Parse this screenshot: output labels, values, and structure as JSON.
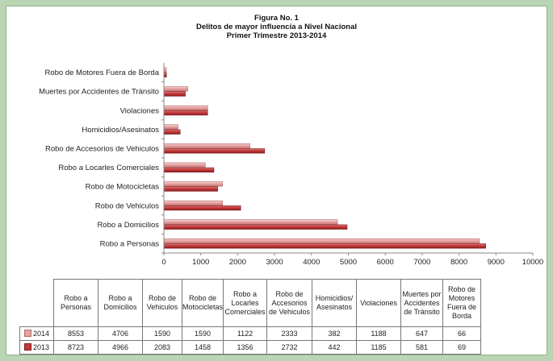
{
  "chart_data": {
    "type": "bar",
    "orientation": "horizontal",
    "title": [
      "Figura No. 1",
      "Delitos de mayor influencia a Nivel Nacional",
      "Primer Trimestre 2013-2014"
    ],
    "categories": [
      "Robo a Personas",
      "Robo a Domicilios",
      "Robo de Vehiculos",
      "Robo de Motocicletas",
      "Robo a Locarles Comerciales",
      "Robo de Accesorios de Vehiculos",
      "Homicidios/Asesinatos",
      "Violaciones",
      "Muertes por Accidentes de Trànsito",
      "Robo de Motores Fuera de Borda"
    ],
    "table_headers": [
      "Robo a Personas",
      "Robo a Domicilios",
      "Robo de Vehiculos",
      "Robo de Motocicletas",
      "Robo a Locarles Comerciales",
      "Robo de Accesorios de Vehiculos",
      "Homicidios/ Asesinatos",
      "Violaciones",
      "Muertes por Accidentes de Trànsito",
      "Robo de Motores Fuera de Borda"
    ],
    "series": [
      {
        "name": "2014",
        "color": "#e8a3a3",
        "values": [
          8553,
          4706,
          1590,
          1590,
          1122,
          2333,
          382,
          1188,
          647,
          66
        ]
      },
      {
        "name": "2013",
        "color": "#c0393b",
        "values": [
          8723,
          4966,
          2083,
          1458,
          1356,
          2732,
          442,
          1185,
          581,
          69
        ]
      }
    ],
    "xlim": [
      0,
      10000
    ],
    "xticks": [
      0,
      1000,
      2000,
      3000,
      4000,
      5000,
      6000,
      7000,
      8000,
      9000,
      10000
    ],
    "grid": false,
    "legend": "data table"
  }
}
